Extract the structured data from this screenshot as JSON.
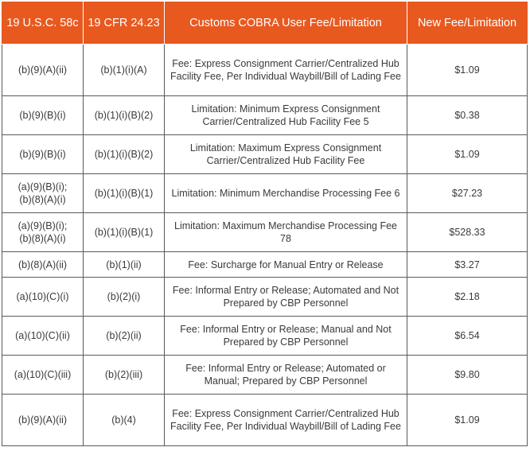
{
  "table": {
    "headers": [
      "19 U.S.C. 58c",
      "19 CFR 24.23",
      "Customs COBRA User Fee/Limitation",
      "New Fee/Limitation"
    ],
    "rows": [
      {
        "usc": "(b)(9)(A)(ii)",
        "cfr": "(b)(1)(i)(A)",
        "desc": "Fee: Express Consignment Carrier/Centralized Hub Facility Fee, Per Individual Waybill/Bill of Lading Fee",
        "fee": "$1.09"
      },
      {
        "usc": "(b)(9)(B)(i)",
        "cfr": "(b)(1)(i)(B)(2)",
        "desc": "Limitation: Minimum Express Consignment Carrier/Centralized Hub Facility Fee 5",
        "fee": "$0.38"
      },
      {
        "usc": "(b)(9)(B)(i)",
        "cfr": "(b)(1)(i)(B)(2)",
        "desc": "Limitation: Maximum Express Consignment Carrier/Centralized Hub Facility Fee",
        "fee": "$1.09"
      },
      {
        "usc": "(a)(9)(B)(i);\n(b)(8)(A)(i)",
        "cfr": "(b)(1)(i)(B)(1)",
        "desc": "Limitation: Minimum Merchandise Processing Fee 6",
        "fee": "$27.23"
      },
      {
        "usc": "(a)(9)(B)(i);\n(b)(8)(A)(i)",
        "cfr": "(b)(1)(i)(B)(1)",
        "desc": "Limitation: Maximum Merchandise Processing Fee 78",
        "fee": "$528.33"
      },
      {
        "usc": "(b)(8)(A)(ii)",
        "cfr": "(b)(1)(ii)",
        "desc": "Fee: Surcharge for Manual Entry or Release",
        "fee": "$3.27"
      },
      {
        "usc": "(a)(10)(C)(i)",
        "cfr": "(b)(2)(i)",
        "desc": "Fee: Informal Entry or Release; Automated and Not Prepared by CBP Personnel",
        "fee": "$2.18"
      },
      {
        "usc": "(a)(10)(C)(ii)",
        "cfr": "(b)(2)(ii)",
        "desc": "Fee: Informal Entry or Release; Manual and Not Prepared by CBP Personnel",
        "fee": "$6.54"
      },
      {
        "usc": "(a)(10)(C)(iii)",
        "cfr": "(b)(2)(iii)",
        "desc": "Fee: Informal Entry or Release; Automated or Manual; Prepared by CBP Personnel",
        "fee": "$9.80"
      },
      {
        "usc": "(b)(9)(A)(ii)",
        "cfr": "(b)(4)",
        "desc": "Fee: Express Consignment Carrier/Centralized Hub Facility Fee, Per Individual Waybill/Bill of Lading Fee",
        "fee": "$1.09"
      }
    ]
  },
  "colors": {
    "header_bg": "#e8591f",
    "header_text": "#ffffff",
    "body_text": "#3a3a3a",
    "border": "#5a5a5a"
  }
}
